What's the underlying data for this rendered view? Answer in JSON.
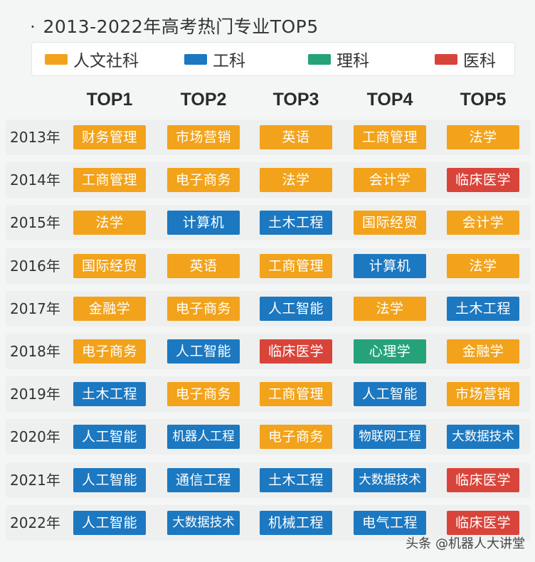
{
  "title": "2013-2022年高考热门专业TOP5",
  "title_dot": "·",
  "legend": [
    {
      "key": "humanities",
      "label": "人文社科",
      "color": "#f2a31b"
    },
    {
      "key": "engineering",
      "label": "工科",
      "color": "#1c78c0"
    },
    {
      "key": "science",
      "label": "理科",
      "color": "#26a27b"
    },
    {
      "key": "medicine",
      "label": "医科",
      "color": "#d9443a"
    }
  ],
  "watermark": "头条 @机器人大讲堂",
  "chart_data": {
    "type": "table",
    "title": "2013-2022年高考热门专业TOP5",
    "columns": [
      "TOP1",
      "TOP2",
      "TOP3",
      "TOP4",
      "TOP5"
    ],
    "rows": [
      {
        "year": "2013年",
        "cells": [
          {
            "text": "财务管理",
            "cat": "humanities"
          },
          {
            "text": "市场营销",
            "cat": "humanities"
          },
          {
            "text": "英语",
            "cat": "humanities"
          },
          {
            "text": "工商管理",
            "cat": "humanities"
          },
          {
            "text": "法学",
            "cat": "humanities"
          }
        ]
      },
      {
        "year": "2014年",
        "cells": [
          {
            "text": "工商管理",
            "cat": "humanities"
          },
          {
            "text": "电子商务",
            "cat": "humanities"
          },
          {
            "text": "法学",
            "cat": "humanities"
          },
          {
            "text": "会计学",
            "cat": "humanities"
          },
          {
            "text": "临床医学",
            "cat": "medicine"
          }
        ]
      },
      {
        "year": "2015年",
        "cells": [
          {
            "text": "法学",
            "cat": "humanities"
          },
          {
            "text": "计算机",
            "cat": "engineering"
          },
          {
            "text": "土木工程",
            "cat": "engineering"
          },
          {
            "text": "国际经贸",
            "cat": "humanities"
          },
          {
            "text": "会计学",
            "cat": "humanities"
          }
        ]
      },
      {
        "year": "2016年",
        "cells": [
          {
            "text": "国际经贸",
            "cat": "humanities"
          },
          {
            "text": "英语",
            "cat": "humanities"
          },
          {
            "text": "工商管理",
            "cat": "humanities"
          },
          {
            "text": "计算机",
            "cat": "engineering"
          },
          {
            "text": "法学",
            "cat": "humanities"
          }
        ]
      },
      {
        "year": "2017年",
        "cells": [
          {
            "text": "金融学",
            "cat": "humanities"
          },
          {
            "text": "电子商务",
            "cat": "humanities"
          },
          {
            "text": "人工智能",
            "cat": "engineering"
          },
          {
            "text": "法学",
            "cat": "humanities"
          },
          {
            "text": "土木工程",
            "cat": "engineering"
          }
        ]
      },
      {
        "year": "2018年",
        "cells": [
          {
            "text": "电子商务",
            "cat": "humanities"
          },
          {
            "text": "人工智能",
            "cat": "engineering"
          },
          {
            "text": "临床医学",
            "cat": "medicine"
          },
          {
            "text": "心理学",
            "cat": "science"
          },
          {
            "text": "金融学",
            "cat": "humanities"
          }
        ]
      },
      {
        "year": "2019年",
        "cells": [
          {
            "text": "土木工程",
            "cat": "engineering"
          },
          {
            "text": "电子商务",
            "cat": "humanities"
          },
          {
            "text": "工商管理",
            "cat": "humanities"
          },
          {
            "text": "人工智能",
            "cat": "engineering"
          },
          {
            "text": "市场营销",
            "cat": "humanities"
          }
        ]
      },
      {
        "year": "2020年",
        "cells": [
          {
            "text": "人工智能",
            "cat": "engineering"
          },
          {
            "text": "机器人工程",
            "cat": "engineering"
          },
          {
            "text": "电子商务",
            "cat": "humanities"
          },
          {
            "text": "物联网工程",
            "cat": "engineering"
          },
          {
            "text": "大数据技术",
            "cat": "engineering"
          }
        ]
      },
      {
        "year": "2021年",
        "cells": [
          {
            "text": "人工智能",
            "cat": "engineering"
          },
          {
            "text": "通信工程",
            "cat": "engineering"
          },
          {
            "text": "土木工程",
            "cat": "engineering"
          },
          {
            "text": "大数据技术",
            "cat": "engineering"
          },
          {
            "text": "临床医学",
            "cat": "medicine"
          }
        ]
      },
      {
        "year": "2022年",
        "cells": [
          {
            "text": "人工智能",
            "cat": "engineering"
          },
          {
            "text": "大数据技术",
            "cat": "engineering"
          },
          {
            "text": "机械工程",
            "cat": "engineering"
          },
          {
            "text": "电气工程",
            "cat": "engineering"
          },
          {
            "text": "临床医学",
            "cat": "medicine"
          }
        ]
      }
    ]
  }
}
